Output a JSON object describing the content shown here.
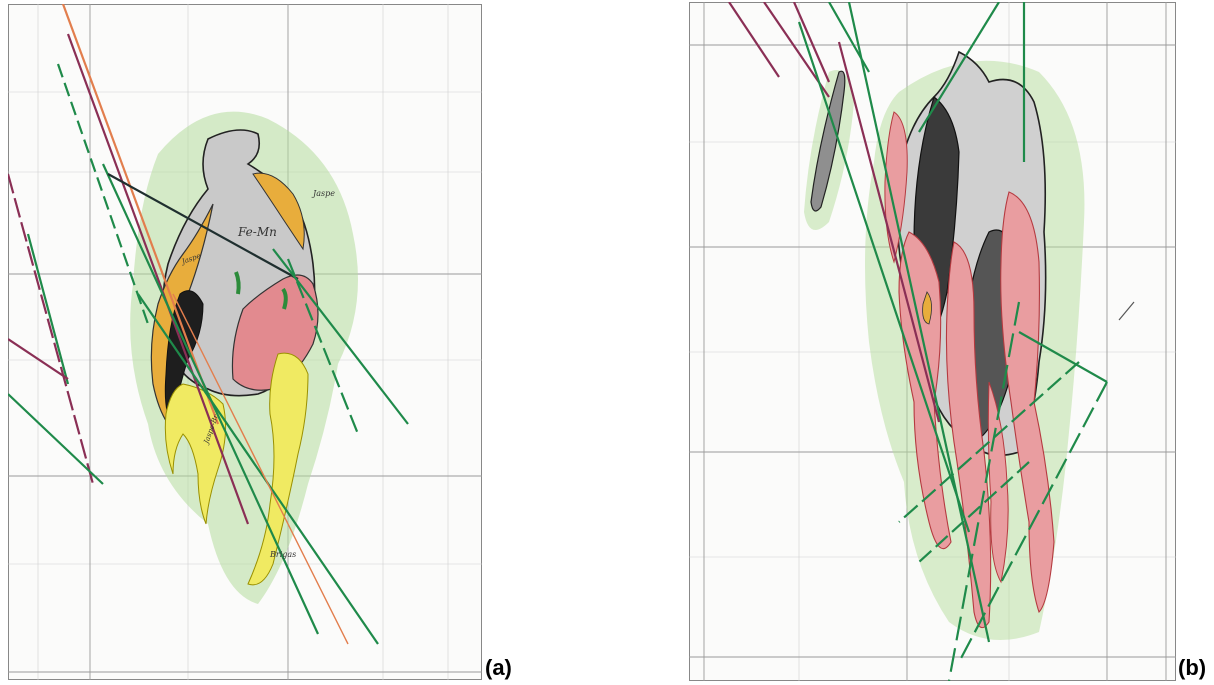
{
  "figure": {
    "panels": [
      {
        "id": "a",
        "caption": "(a)",
        "annotations": [
          "Fe-Mn",
          "Jaspe",
          "Jaspe",
          "Jaspe-Br",
          "Brigas"
        ],
        "colors": {
          "host_rock": "#c9c9c9",
          "black_unit": "#1e1e1e",
          "orange_unit": "#e8ad3c",
          "yellow_unit": "#f0ea62",
          "red_unit": "#e28a8f",
          "halo": "#b5dd9c",
          "drillhole_green": "#1f8a4a",
          "drillhole_magenta": "#8a2f55",
          "drillhole_orange": "#e27e4d"
        }
      },
      {
        "id": "b",
        "caption": "(b)",
        "annotations": [],
        "colors": {
          "host_rock": "#c9c9c9",
          "black_unit": "#2a2a2a",
          "red_unit": "#e99da0",
          "halo": "#b5dd9c",
          "drillhole_green": "#1f8a4a",
          "drillhole_magenta": "#8a2f55"
        }
      }
    ]
  }
}
